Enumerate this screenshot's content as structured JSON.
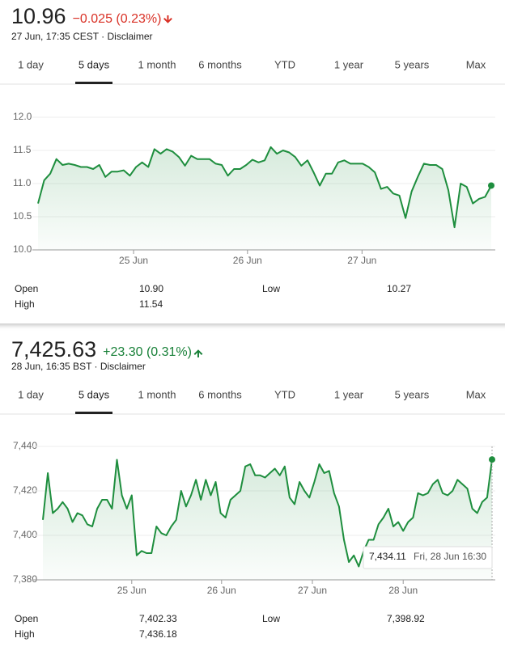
{
  "panels": [
    {
      "price": "10.96",
      "change": "−0.025 (0.23%)",
      "change_color": "#d93025",
      "direction": "down",
      "date": "27 Jun, 17:35 CEST · Disclaimer",
      "tabs": [
        "1 day",
        "5 days",
        "1 month",
        "6 months",
        "YTD",
        "1 year",
        "5 years",
        "Max"
      ],
      "selected_tab": 1,
      "stats": [
        [
          "Open",
          "10.90"
        ],
        [
          "High",
          "11.54"
        ],
        [
          "Low",
          "10.27"
        ]
      ]
    },
    {
      "price": "7,425.63",
      "change": "+23.30 (0.31%)",
      "change_color": "#188038",
      "direction": "up",
      "date": "28 Jun, 16:35 BST · Disclaimer",
      "tabs": [
        "1 day",
        "5 days",
        "1 month",
        "6 months",
        "YTD",
        "1 year",
        "5 years",
        "Max"
      ],
      "selected_tab": 1,
      "stats": [
        [
          "Open",
          "7,402.33"
        ],
        [
          "High",
          "7,436.18"
        ],
        [
          "Low",
          "7,398.92"
        ]
      ],
      "tooltip": {
        "value": "7,434.11",
        "time": "Fri, 28 Jun 16:30"
      }
    }
  ],
  "chart_data": [
    {
      "type": "line",
      "color": "#1e8e3e",
      "grid": true,
      "values": [
        10.7,
        11.05,
        11.15,
        11.37,
        11.28,
        11.3,
        11.28,
        11.25,
        11.25,
        11.22,
        11.28,
        11.1,
        11.18,
        11.18,
        11.2,
        11.12,
        11.25,
        11.32,
        11.25,
        11.52,
        11.45,
        11.52,
        11.48,
        11.4,
        11.27,
        11.42,
        11.37,
        11.37,
        11.37,
        11.3,
        11.28,
        11.12,
        11.22,
        11.22,
        11.28,
        11.36,
        11.32,
        11.35,
        11.55,
        11.45,
        11.5,
        11.47,
        11.4,
        11.27,
        11.35,
        11.17,
        10.97,
        11.15,
        11.15,
        11.32,
        11.35,
        11.3,
        11.3,
        11.3,
        11.25,
        11.17,
        10.92,
        10.95,
        10.85,
        10.82,
        10.48,
        10.88,
        11.1,
        11.3,
        11.28,
        11.28,
        11.22,
        10.9,
        10.34,
        11.0,
        10.95,
        10.7,
        10.77,
        10.8,
        10.97
      ],
      "xlim": [
        0,
        74
      ],
      "xticks": [
        {
          "value": 15.6,
          "label": "25 Jun"
        },
        {
          "value": 34.2,
          "label": "26 Jun"
        },
        {
          "value": 52.9,
          "label": "27 Jun"
        }
      ],
      "ylim": [
        10,
        12
      ],
      "yticks": [
        {
          "value": 10,
          "label": "10.0"
        },
        10.5,
        {
          "value": 11,
          "label": "11.0"
        },
        11.5,
        {
          "value": 12,
          "label": "12.0"
        }
      ]
    },
    {
      "type": "line",
      "color": "#1e8e3e",
      "grid": true,
      "values": [
        7407,
        7428,
        7410,
        7412,
        7415,
        7412,
        7406,
        7410,
        7409,
        7405,
        7404,
        7412,
        7416,
        7416,
        7412,
        7434,
        7418,
        7412,
        7418,
        7391,
        7393,
        7392,
        7392,
        7404,
        7401,
        7400,
        7404,
        7407,
        7420,
        7413,
        7418,
        7425,
        7416,
        7425,
        7418,
        7424,
        7410,
        7408,
        7416,
        7418,
        7420,
        7431,
        7432,
        7427,
        7427,
        7426,
        7428,
        7430,
        7427,
        7431,
        7417,
        7414,
        7424,
        7420,
        7417,
        7424,
        7432,
        7428,
        7429,
        7419,
        7413,
        7398,
        7388,
        7391,
        7386,
        7393,
        7398,
        7398,
        7405,
        7408,
        7412,
        7404,
        7406,
        7402,
        7406,
        7408,
        7419,
        7418,
        7419,
        7423,
        7425,
        7419,
        7418,
        7420,
        7425,
        7423,
        7421,
        7412,
        7410,
        7415,
        7417,
        7434.11
      ],
      "xlim": [
        0,
        91
      ],
      "xticks": [
        {
          "value": 18.0,
          "label": "25 Jun"
        },
        {
          "value": 36.2,
          "label": "26 Jun"
        },
        {
          "value": 54.6,
          "label": "27 Jun"
        },
        {
          "value": 73.0,
          "label": "28 Jun"
        }
      ],
      "ylim": [
        7380,
        7440
      ],
      "yticks": [
        {
          "value": 7380,
          "label": "7,380"
        },
        {
          "value": 7400,
          "label": "7,400"
        },
        {
          "value": 7420,
          "label": "7,420"
        },
        {
          "value": 7440,
          "label": "7,440"
        }
      ]
    }
  ]
}
